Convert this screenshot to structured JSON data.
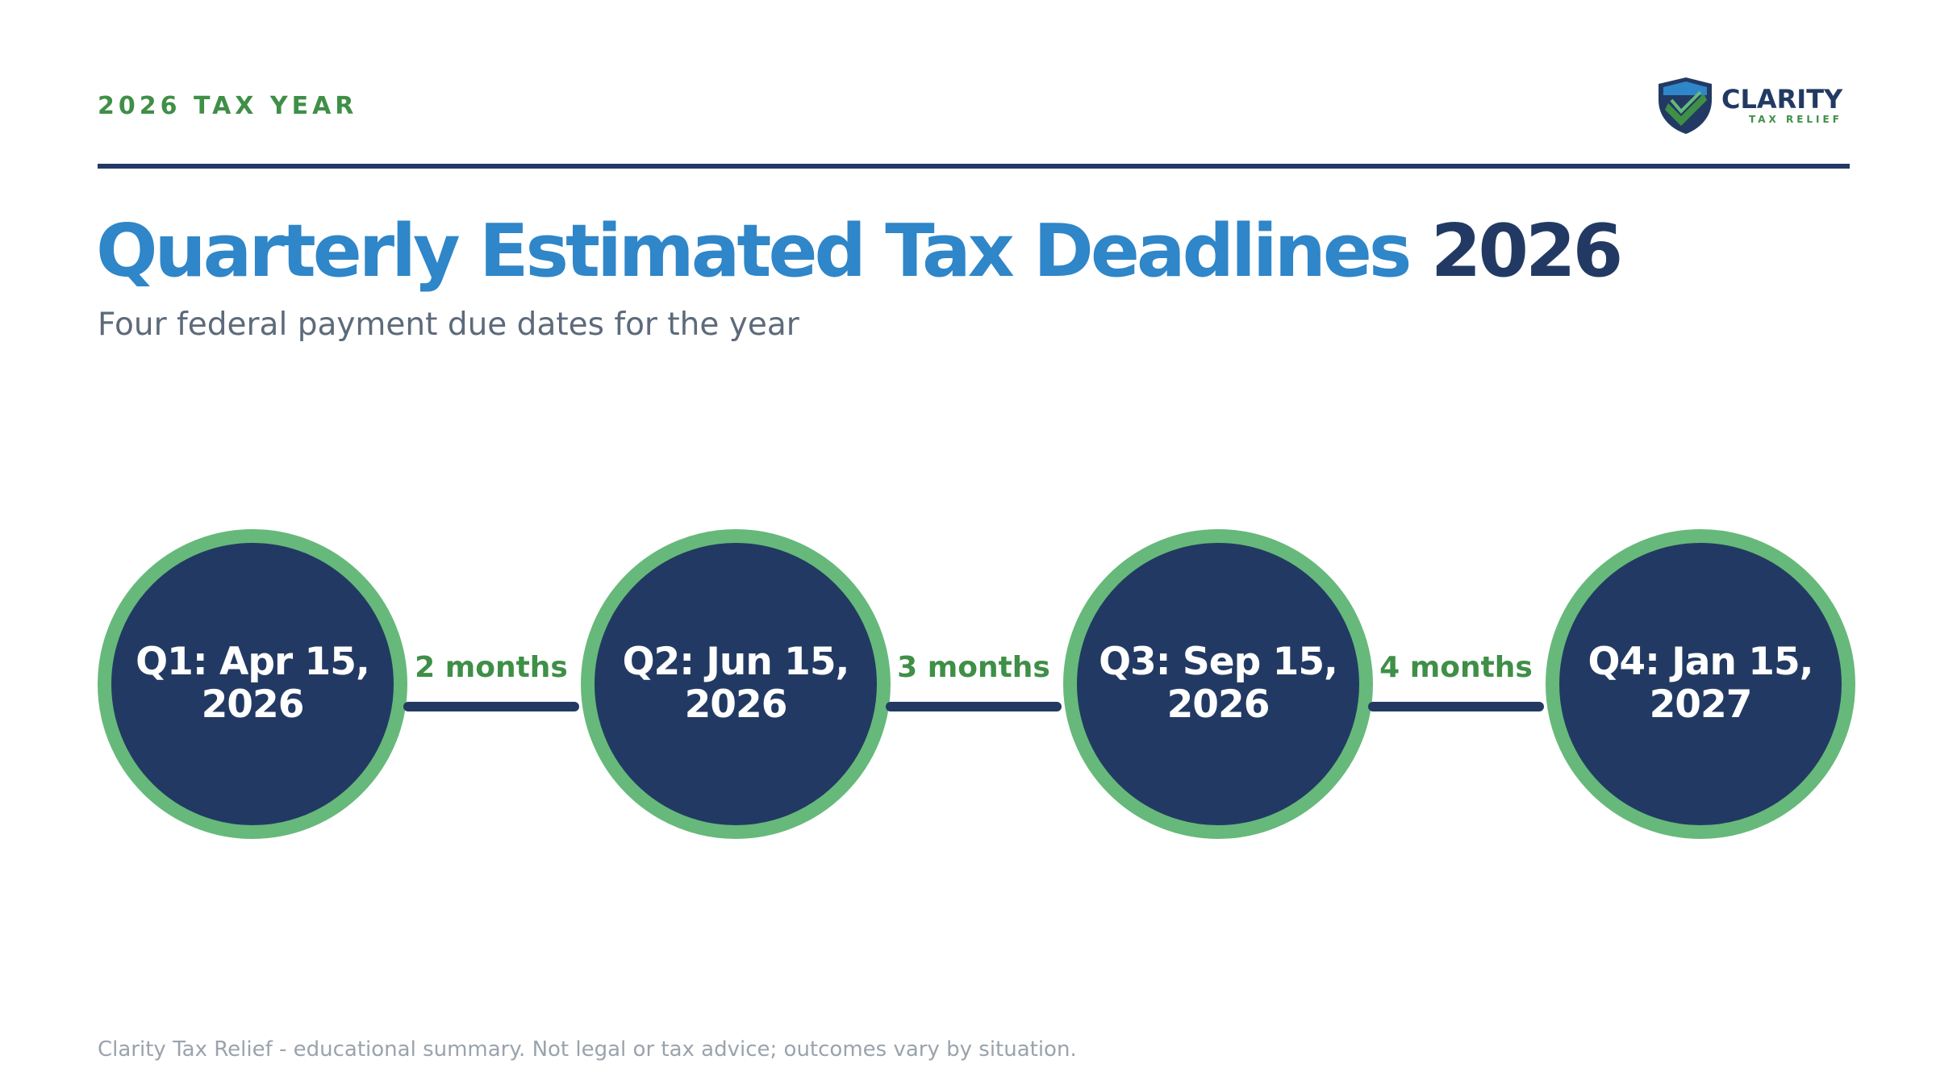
{
  "header": {
    "eyebrow": "2026 TAX YEAR",
    "logo": {
      "name": "CLARITY",
      "subtitle": "TAX RELIEF"
    }
  },
  "title": {
    "main": "Quarterly Estimated Tax Deadlines",
    "year": "2026"
  },
  "subtitle": "Four federal payment due dates for the year",
  "timeline": {
    "nodes": [
      {
        "label": "Q1: Apr 15, 2026"
      },
      {
        "label": "Q2: Jun 15, 2026"
      },
      {
        "label": "Q3: Sep 15, 2026"
      },
      {
        "label": "Q4: Jan 15, 2027"
      }
    ],
    "connectors": [
      {
        "label": "2 months"
      },
      {
        "label": "3 months"
      },
      {
        "label": "4 months"
      }
    ]
  },
  "footer": "Clarity Tax Relief - educational summary. Not legal or tax advice; outcomes vary by situation.",
  "colors": {
    "accent_blue": "#2f86c8",
    "navy": "#223a63",
    "green": "#3f8f47",
    "ring_green": "#66b97a",
    "muted": "#5d6a7a"
  }
}
